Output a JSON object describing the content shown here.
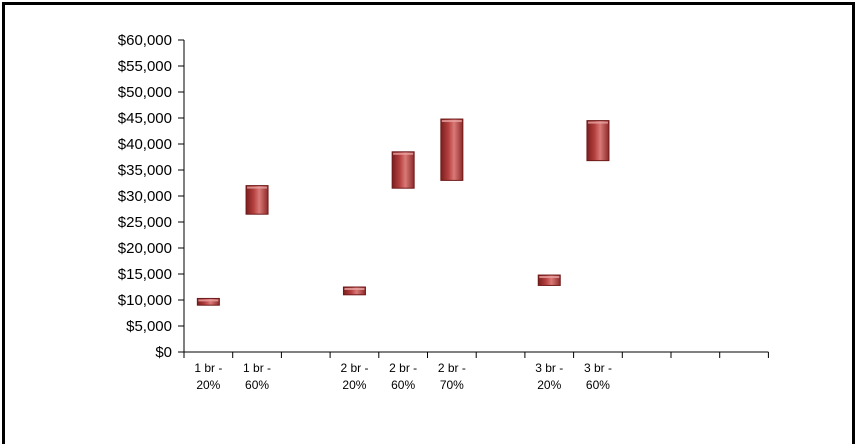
{
  "chart_data": {
    "type": "bar",
    "subtype": "floating-range",
    "title": "",
    "xlabel": "",
    "ylabel": "",
    "ylim": [
      0,
      60000
    ],
    "y_ticks": [
      "$0",
      "$5,000",
      "$10,000",
      "$15,000",
      "$20,000",
      "$25,000",
      "$30,000",
      "$35,000",
      "$40,000",
      "$45,000",
      "$50,000",
      "$55,000",
      "$60,000"
    ],
    "grid": false,
    "legend": "none",
    "bar_color": "#b5403f",
    "slots": [
      {
        "label": [
          "1 br -",
          "20%"
        ],
        "range": [
          9000,
          10300
        ]
      },
      {
        "label": [
          "1 br -",
          "60%"
        ],
        "range": [
          26500,
          32000
        ]
      },
      {
        "label": [
          "",
          ""
        ],
        "range": null
      },
      {
        "label": [
          "2 br -",
          "20%"
        ],
        "range": [
          11000,
          12500
        ]
      },
      {
        "label": [
          "2 br -",
          "60%"
        ],
        "range": [
          31500,
          38500
        ]
      },
      {
        "label": [
          "2 br -",
          "70%"
        ],
        "range": [
          33000,
          44800
        ]
      },
      {
        "label": [
          "",
          ""
        ],
        "range": null
      },
      {
        "label": [
          "3 br -",
          "20%"
        ],
        "range": [
          12800,
          14800
        ]
      },
      {
        "label": [
          "3 br -",
          "60%"
        ],
        "range": [
          36800,
          44500
        ]
      },
      {
        "label": [
          "",
          ""
        ],
        "range": null
      },
      {
        "label": [
          "",
          ""
        ],
        "range": null
      },
      {
        "label": [
          "",
          ""
        ],
        "range": null
      }
    ]
  }
}
